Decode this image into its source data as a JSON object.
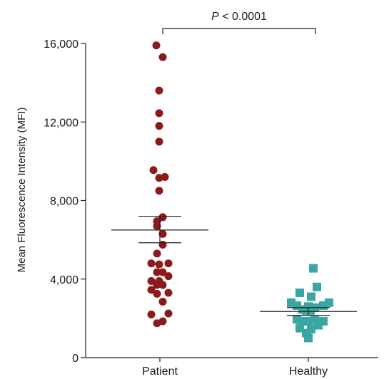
{
  "chart_data": {
    "type": "scatter",
    "ylabel": "Mean Fluorescence Intensity (MFI)",
    "ylim": [
      0,
      16000
    ],
    "yticks": [
      0,
      4000,
      8000,
      12000,
      16000
    ],
    "ytick_labels": [
      "0",
      "4,000",
      "8,000",
      "12,000",
      "16,000"
    ],
    "categories": [
      "Patient",
      "Healthy"
    ],
    "series": [
      {
        "category": "Patient",
        "marker": "circle",
        "color": "#8b1a1a",
        "mean": 6500,
        "sem_upper": 7200,
        "sem_lower": 5850,
        "points": [
          {
            "x": -0.05,
            "y": 15900
          },
          {
            "x": 0.04,
            "y": 15300
          },
          {
            "x": -0.01,
            "y": 13600
          },
          {
            "x": -0.01,
            "y": 12450
          },
          {
            "x": -0.01,
            "y": 11800
          },
          {
            "x": -0.01,
            "y": 11000
          },
          {
            "x": -0.09,
            "y": 9550
          },
          {
            "x": -0.01,
            "y": 9150
          },
          {
            "x": 0.07,
            "y": 9200
          },
          {
            "x": -0.01,
            "y": 8500
          },
          {
            "x": 0.04,
            "y": 7150
          },
          {
            "x": -0.04,
            "y": 6950
          },
          {
            "x": -0.04,
            "y": 6700
          },
          {
            "x": 0.04,
            "y": 6300
          },
          {
            "x": 0.04,
            "y": 5750
          },
          {
            "x": -0.04,
            "y": 5300
          },
          {
            "x": -0.12,
            "y": 4800
          },
          {
            "x": -0.01,
            "y": 4750
          },
          {
            "x": 0.12,
            "y": 4800
          },
          {
            "x": -0.04,
            "y": 4350
          },
          {
            "x": 0.04,
            "y": 4350
          },
          {
            "x": 0.12,
            "y": 4150
          },
          {
            "x": -0.12,
            "y": 3900
          },
          {
            "x": -0.01,
            "y": 3900
          },
          {
            "x": -0.12,
            "y": 3450
          },
          {
            "x": -0.04,
            "y": 3700
          },
          {
            "x": 0.04,
            "y": 3700
          },
          {
            "x": -0.04,
            "y": 3250
          },
          {
            "x": 0.12,
            "y": 3300
          },
          {
            "x": 0.04,
            "y": 2850
          },
          {
            "x": -0.12,
            "y": 2200
          },
          {
            "x": 0.12,
            "y": 2250
          },
          {
            "x": -0.04,
            "y": 1750
          },
          {
            "x": 0.04,
            "y": 1850
          }
        ]
      },
      {
        "category": "Healthy",
        "marker": "square",
        "color": "#3aa6a4",
        "mean": 2350,
        "sem_upper": 2550,
        "sem_lower": 2150,
        "points": [
          {
            "x": 0.07,
            "y": 4550
          },
          {
            "x": 0.12,
            "y": 3600
          },
          {
            "x": -0.12,
            "y": 3300
          },
          {
            "x": 0.04,
            "y": 3100
          },
          {
            "x": -0.24,
            "y": 2800
          },
          {
            "x": -0.16,
            "y": 2650
          },
          {
            "x": 0.0,
            "y": 2600
          },
          {
            "x": 0.09,
            "y": 2550
          },
          {
            "x": 0.21,
            "y": 2650
          },
          {
            "x": 0.29,
            "y": 2800
          },
          {
            "x": -0.08,
            "y": 2450
          },
          {
            "x": -0.03,
            "y": 2400
          },
          {
            "x": 0.03,
            "y": 2400
          },
          {
            "x": -0.16,
            "y": 1950
          },
          {
            "x": -0.08,
            "y": 1850
          },
          {
            "x": 0.0,
            "y": 1850
          },
          {
            "x": 0.09,
            "y": 1900
          },
          {
            "x": 0.21,
            "y": 1850
          },
          {
            "x": -0.12,
            "y": 1500
          },
          {
            "x": 0.04,
            "y": 1450
          },
          {
            "x": 0.14,
            "y": 1650
          },
          {
            "x": -0.03,
            "y": 1250
          },
          {
            "x": 0.0,
            "y": 1000
          }
        ]
      }
    ],
    "comparison": {
      "between": [
        "Patient",
        "Healthy"
      ],
      "label_italic": "P",
      "label_rest": "< 0.0001"
    }
  }
}
